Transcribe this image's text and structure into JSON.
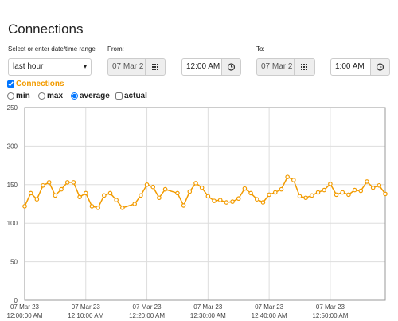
{
  "header": {
    "title": "Connections"
  },
  "controls": {
    "range_label": "Select or enter date/time range",
    "range_value": "last hour",
    "from_label": "From:",
    "from_date": "07 Mar 2",
    "from_time": "12:00 AM",
    "to_label": "To:",
    "to_date": "07 Mar 2",
    "to_time": "1:00 AM"
  },
  "options": {
    "min": "min",
    "max": "max",
    "average": "average",
    "actual": "actual"
  },
  "chart_data": {
    "type": "line",
    "x": [
      0,
      1,
      2,
      3,
      4,
      5,
      6,
      7,
      8,
      9,
      10,
      11,
      12,
      13,
      14,
      15,
      16,
      18,
      19,
      20,
      21,
      22,
      23,
      25,
      26,
      27,
      28,
      29,
      30,
      31,
      32,
      33,
      34,
      35,
      36,
      37,
      38,
      39,
      40,
      41,
      42,
      43,
      44,
      45,
      46,
      47,
      48,
      49,
      50,
      51,
      52,
      53,
      54,
      55,
      56,
      57,
      58,
      59
    ],
    "series": [
      {
        "name": "Connections",
        "color": "#f29b00",
        "values": [
          122,
          139,
          131,
          149,
          153,
          136,
          144,
          153,
          153,
          134,
          139,
          122,
          120,
          136,
          139,
          130,
          120,
          125,
          136,
          150,
          147,
          133,
          144,
          139,
          123,
          141,
          152,
          146,
          135,
          129,
          130,
          127,
          128,
          132,
          145,
          139,
          131,
          127,
          137,
          140,
          144,
          160,
          156,
          135,
          133,
          136,
          140,
          143,
          151,
          137,
          140,
          137,
          143,
          142,
          154,
          146,
          149,
          138
        ]
      }
    ],
    "xlim": [
      0,
      59
    ],
    "xticks": [
      {
        "value": 0,
        "label": "07 Mar 23\n12:00:00 AM"
      },
      {
        "value": 10,
        "label": "07 Mar 23\n12:10:00 AM"
      },
      {
        "value": 20,
        "label": "07 Mar 23\n12:20:00 AM"
      },
      {
        "value": 30,
        "label": "07 Mar 23\n12:30:00 AM"
      },
      {
        "value": 40,
        "label": "07 Mar 23\n12:40:00 AM"
      },
      {
        "value": 50,
        "label": "07 Mar 23\n12:50:00 AM"
      }
    ],
    "ylim": [
      0,
      250
    ],
    "yticks": [
      0,
      50,
      100,
      150,
      200,
      250
    ],
    "grid": true
  }
}
